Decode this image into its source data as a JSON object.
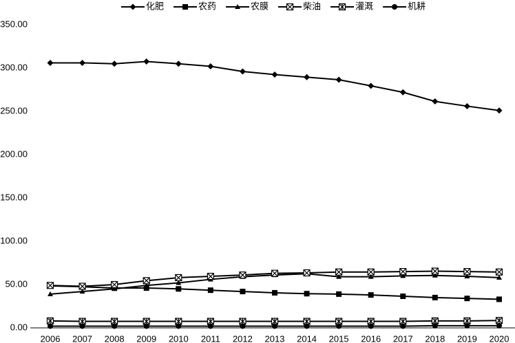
{
  "chart_data": {
    "type": "line",
    "categories": [
      "2006",
      "2007",
      "2008",
      "2009",
      "2010",
      "2011",
      "2012",
      "2013",
      "2014",
      "2015",
      "2016",
      "2017",
      "2018",
      "2019",
      "2020"
    ],
    "series": [
      {
        "name": "化肥",
        "color": "#000000",
        "marker": "diamond",
        "values": [
          306,
          306,
          305,
          307.5,
          305,
          302,
          296,
          292.5,
          289.5,
          286.5,
          279.5,
          272,
          261.5,
          256,
          251
        ]
      },
      {
        "name": "农药",
        "color": "#000000",
        "marker": "square",
        "values": [
          48.5,
          47.5,
          46,
          46,
          45,
          43.5,
          42,
          40.5,
          39.5,
          39,
          38,
          36.5,
          35,
          34,
          33
        ]
      },
      {
        "name": "农膜",
        "color": "#000000",
        "marker": "triangle",
        "values": [
          39,
          42,
          45,
          49,
          52,
          56,
          59,
          61,
          62.5,
          59,
          59,
          60,
          60.5,
          59.5,
          58
        ]
      },
      {
        "name": "柴油",
        "color": "#000000",
        "marker": "xbox",
        "values": [
          49,
          48,
          50,
          54.5,
          58,
          59.5,
          61,
          63,
          63.5,
          64.5,
          64.5,
          65,
          65.5,
          65,
          64.5
        ]
      },
      {
        "name": "灌溉",
        "color": "#000000",
        "marker": "starbox",
        "values": [
          8,
          7.5,
          7.5,
          7.5,
          7.5,
          7.5,
          7.5,
          7.5,
          7.5,
          7.5,
          7.5,
          7.5,
          8,
          8,
          8.5
        ]
      },
      {
        "name": "机耕",
        "color": "#000000",
        "marker": "circle",
        "values": [
          2,
          2,
          2,
          2,
          2,
          2,
          2,
          2,
          2,
          2,
          2,
          2,
          2.5,
          2.5,
          2.5
        ]
      }
    ],
    "ylim": [
      0,
      350
    ],
    "yticks": [
      {
        "value": 0,
        "label": "0.00"
      },
      {
        "value": 50,
        "label": "50.00"
      },
      {
        "value": 100,
        "label": "100.00"
      },
      {
        "value": 150,
        "label": "150.00"
      },
      {
        "value": 200,
        "label": "200.00"
      },
      {
        "value": 250,
        "label": "250.00"
      },
      {
        "value": 300,
        "label": "300.00"
      },
      {
        "value": 350,
        "label": "350.00"
      }
    ],
    "legend": "top"
  }
}
